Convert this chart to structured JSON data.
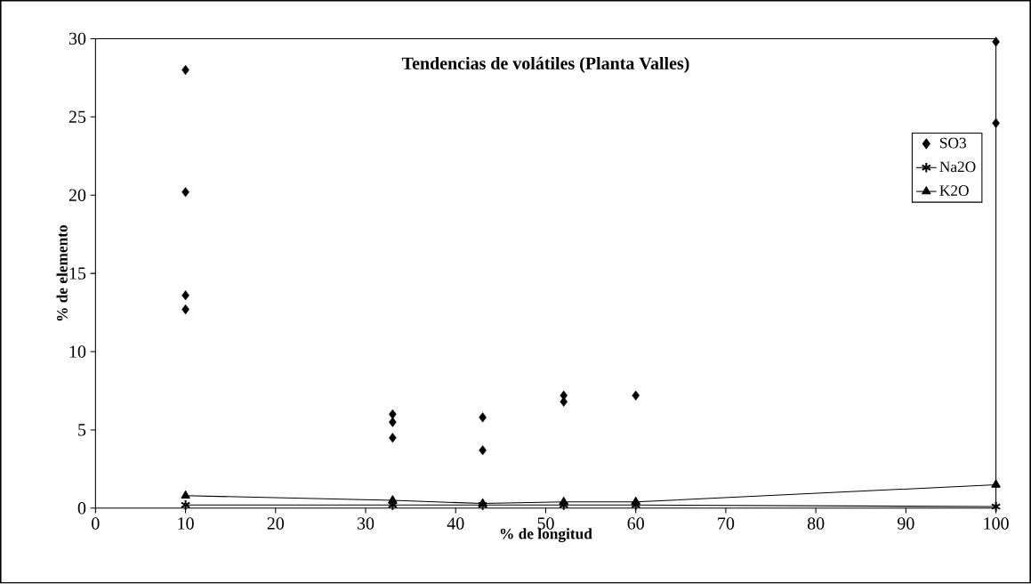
{
  "chart_data": {
    "type": "scatter",
    "title": "Tendencias de volátiles (Planta Valles)",
    "xlabel": "% de longitud",
    "ylabel": "% de elemento",
    "xlim": [
      0,
      100
    ],
    "ylim": [
      0,
      30
    ],
    "xticks": [
      0,
      10,
      20,
      30,
      40,
      50,
      60,
      70,
      80,
      90,
      100
    ],
    "yticks": [
      0,
      5,
      10,
      15,
      20,
      25,
      30
    ],
    "grid": false,
    "legend": "right",
    "series": [
      {
        "name": "SO3",
        "marker": "diamond",
        "color": "#000000",
        "x": [
          10,
          10,
          10,
          10,
          33,
          33,
          33,
          43,
          43,
          52,
          52,
          60,
          100,
          100
        ],
        "values": [
          28,
          20.2,
          13.6,
          12.7,
          6.0,
          5.5,
          4.5,
          5.8,
          3.7,
          7.2,
          6.8,
          7.2,
          29.8,
          24.6
        ]
      },
      {
        "name": "Na2O",
        "type": "line",
        "marker": "cross",
        "color": "#000000",
        "x": [
          10,
          33,
          43,
          52,
          60,
          100
        ],
        "values": [
          0.2,
          0.2,
          0.2,
          0.2,
          0.2,
          0.1
        ]
      },
      {
        "name": "K2O",
        "type": "line",
        "marker": "triangle",
        "color": "#000000",
        "x": [
          10,
          33,
          43,
          52,
          60,
          100
        ],
        "values": [
          0.8,
          0.5,
          0.3,
          0.4,
          0.4,
          1.5
        ]
      }
    ]
  }
}
